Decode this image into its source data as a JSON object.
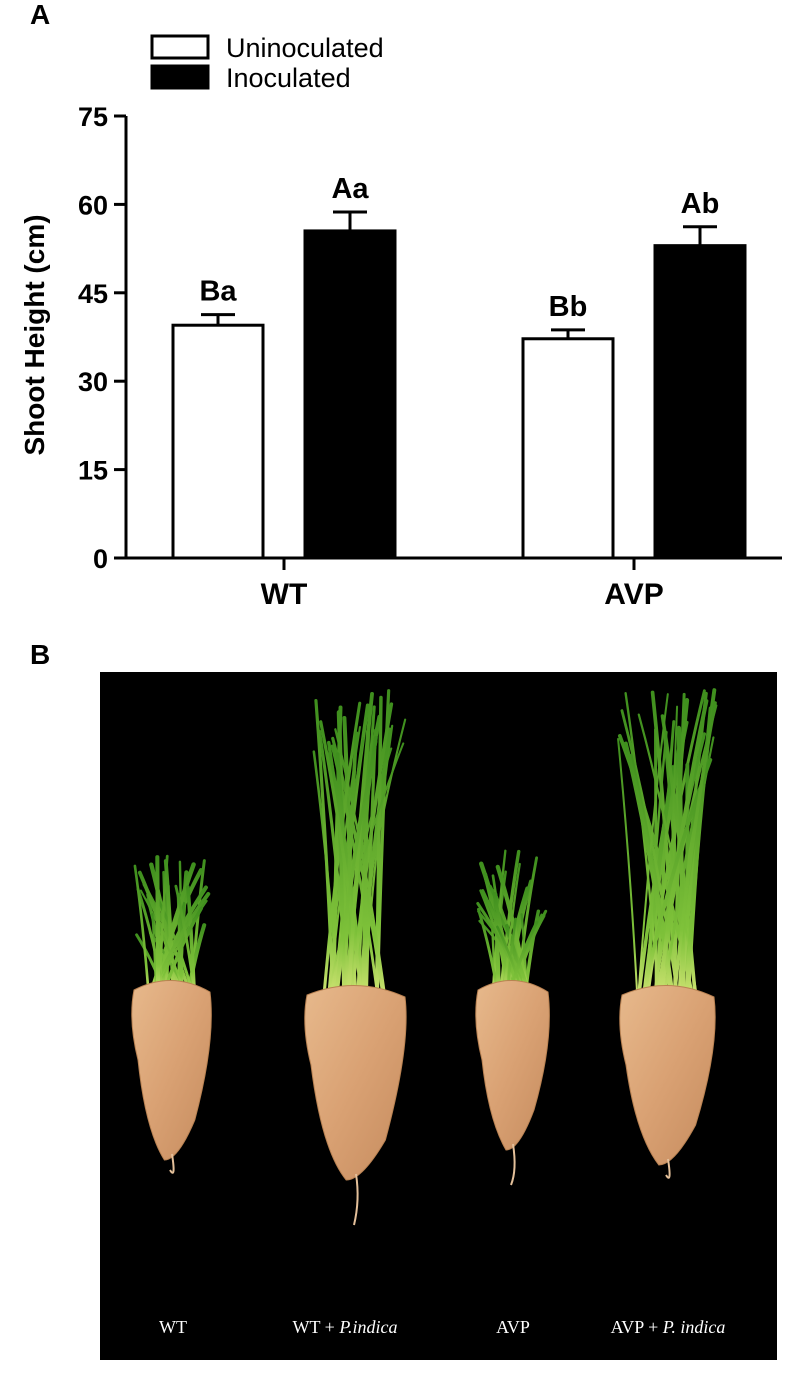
{
  "panel_a_label": "A",
  "panel_b_label": "B",
  "chart_data": {
    "type": "bar",
    "categories": [
      "WT",
      "AVP"
    ],
    "series": [
      {
        "name": "Uninoculated",
        "values": [
          39.5,
          37.2
        ],
        "errors": [
          1.8,
          1.5
        ],
        "sig": [
          "Ba",
          "Bb"
        ],
        "fill": "#ffffff"
      },
      {
        "name": "Inoculated",
        "values": [
          55.5,
          53.0
        ],
        "errors": [
          3.2,
          3.2
        ],
        "sig": [
          "Aa",
          "Ab"
        ],
        "fill": "#000000"
      }
    ],
    "xlabel": "",
    "ylabel": "Shoot Height (cm)",
    "ylim": [
      0,
      75
    ],
    "yticks": [
      0,
      15,
      30,
      45,
      60,
      75
    ],
    "grid": false,
    "legend_position": "top-left"
  },
  "photo": {
    "background": "#000000",
    "labels": [
      {
        "text": "WT",
        "italic": ""
      },
      {
        "text": "WT + ",
        "italic": "P.indica"
      },
      {
        "text": "AVP",
        "italic": ""
      },
      {
        "text": "AVP + ",
        "italic": "P. indica"
      }
    ],
    "plants": [
      {
        "name": "WT",
        "height": "short"
      },
      {
        "name": "WT + P.indica",
        "height": "tall"
      },
      {
        "name": "AVP",
        "height": "short"
      },
      {
        "name": "AVP + P. indica",
        "height": "tall"
      }
    ]
  }
}
